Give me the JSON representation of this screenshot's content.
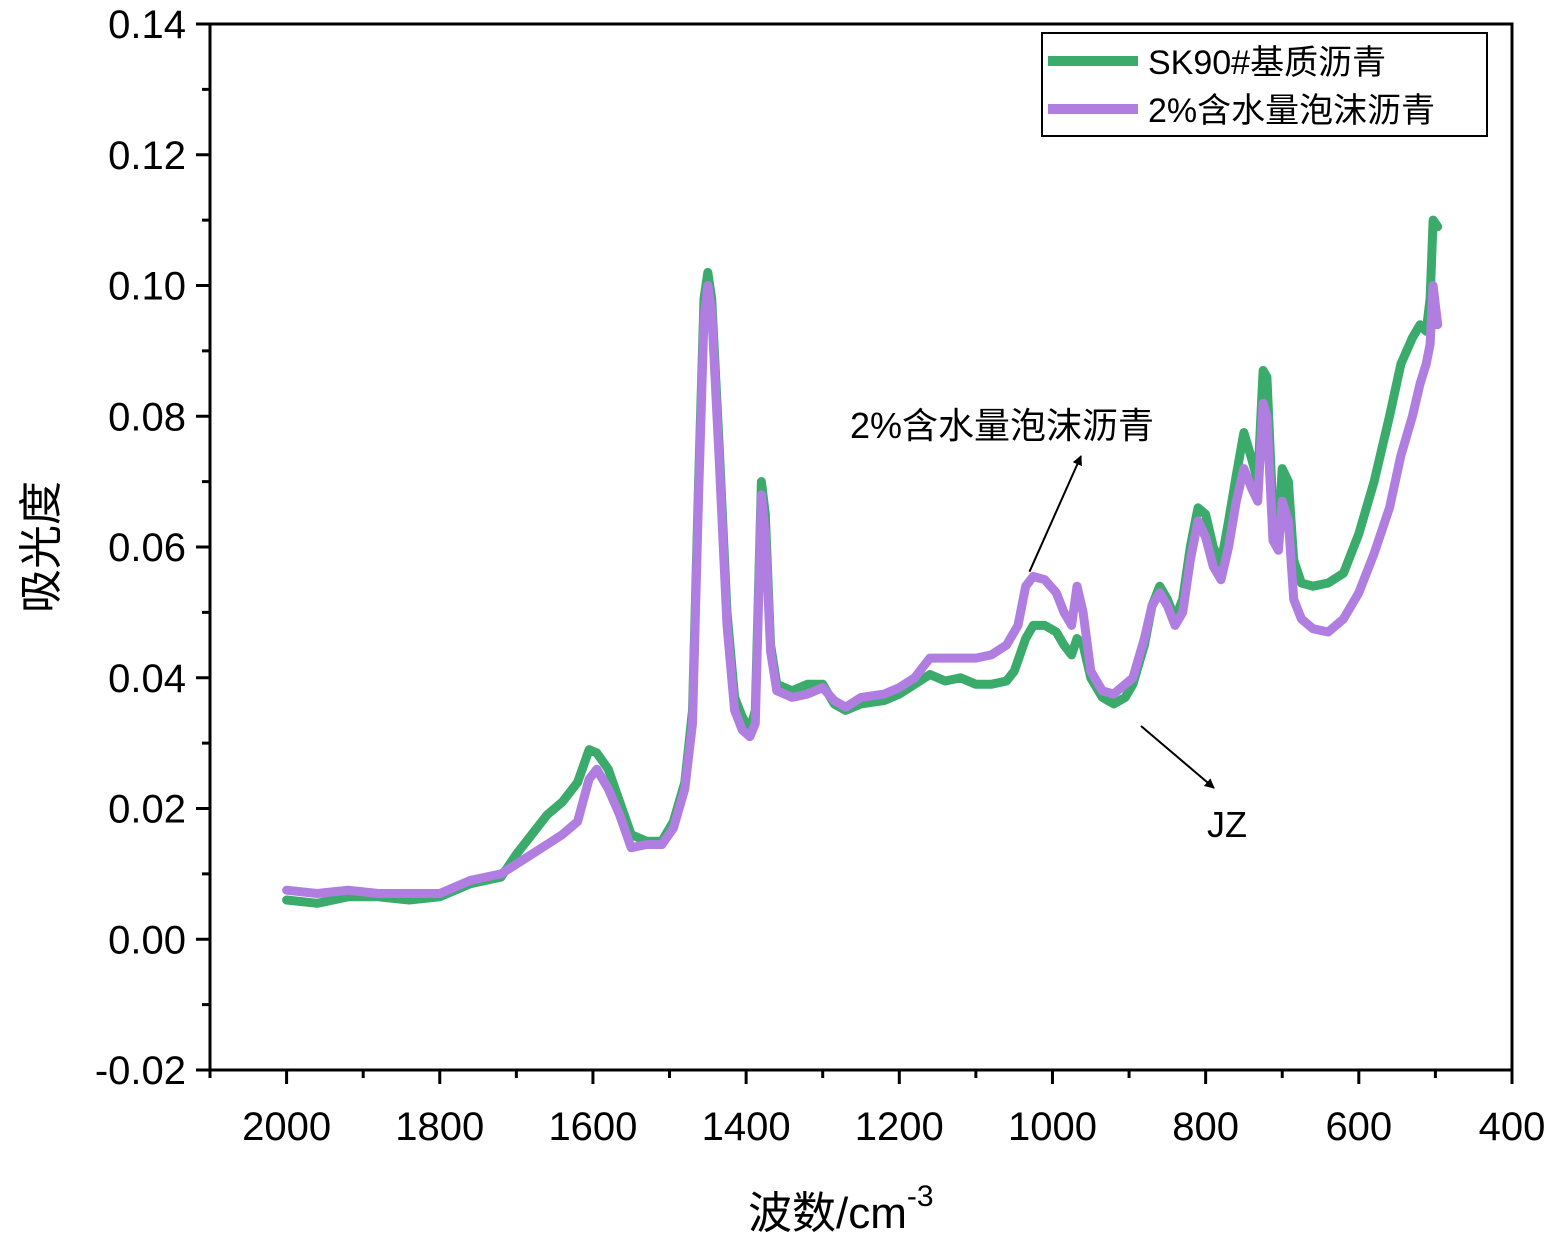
{
  "chart_data": {
    "type": "line",
    "title": "",
    "xlabel": "波数/cm",
    "xlabel_superscript": "-3",
    "ylabel": "吸光度",
    "xlim": [
      2100,
      400
    ],
    "ylim": [
      -0.02,
      0.14
    ],
    "x_ticks": [
      2000,
      1800,
      1600,
      1400,
      1200,
      1000,
      800,
      600,
      400
    ],
    "x_tick_labels": [
      "2000",
      "1800",
      "1600",
      "1400",
      "1200",
      "1000",
      "800",
      "600",
      "400"
    ],
    "y_ticks": [
      -0.02,
      0.0,
      0.02,
      0.04,
      0.06,
      0.08,
      0.1,
      0.12,
      0.14
    ],
    "y_tick_labels": [
      "-0.02",
      "0.00",
      "0.02",
      "0.04",
      "0.06",
      "0.08",
      "0.10",
      "0.12",
      "0.14"
    ],
    "grid": false,
    "legend_position": "top-right",
    "series": [
      {
        "name": "SK90#基质沥青",
        "color": "#3aab6b",
        "points": [
          [
            2000,
            0.006
          ],
          [
            1960,
            0.0055
          ],
          [
            1920,
            0.0065
          ],
          [
            1880,
            0.0065
          ],
          [
            1840,
            0.006
          ],
          [
            1800,
            0.0065
          ],
          [
            1760,
            0.0085
          ],
          [
            1720,
            0.0095
          ],
          [
            1700,
            0.013
          ],
          [
            1680,
            0.016
          ],
          [
            1660,
            0.019
          ],
          [
            1640,
            0.021
          ],
          [
            1620,
            0.024
          ],
          [
            1605,
            0.029
          ],
          [
            1595,
            0.0285
          ],
          [
            1580,
            0.026
          ],
          [
            1565,
            0.021
          ],
          [
            1550,
            0.016
          ],
          [
            1530,
            0.015
          ],
          [
            1510,
            0.015
          ],
          [
            1495,
            0.018
          ],
          [
            1480,
            0.024
          ],
          [
            1470,
            0.035
          ],
          [
            1462,
            0.07
          ],
          [
            1455,
            0.098
          ],
          [
            1450,
            0.102
          ],
          [
            1445,
            0.098
          ],
          [
            1435,
            0.075
          ],
          [
            1425,
            0.05
          ],
          [
            1415,
            0.037
          ],
          [
            1405,
            0.034
          ],
          [
            1395,
            0.032
          ],
          [
            1388,
            0.035
          ],
          [
            1380,
            0.07
          ],
          [
            1375,
            0.065
          ],
          [
            1368,
            0.045
          ],
          [
            1360,
            0.039
          ],
          [
            1340,
            0.038
          ],
          [
            1320,
            0.039
          ],
          [
            1300,
            0.039
          ],
          [
            1285,
            0.036
          ],
          [
            1270,
            0.035
          ],
          [
            1250,
            0.036
          ],
          [
            1220,
            0.0365
          ],
          [
            1200,
            0.0375
          ],
          [
            1180,
            0.039
          ],
          [
            1160,
            0.0405
          ],
          [
            1140,
            0.0395
          ],
          [
            1120,
            0.04
          ],
          [
            1100,
            0.039
          ],
          [
            1080,
            0.039
          ],
          [
            1060,
            0.0395
          ],
          [
            1050,
            0.041
          ],
          [
            1035,
            0.046
          ],
          [
            1025,
            0.048
          ],
          [
            1010,
            0.048
          ],
          [
            995,
            0.047
          ],
          [
            985,
            0.045
          ],
          [
            975,
            0.0435
          ],
          [
            968,
            0.046
          ],
          [
            960,
            0.045
          ],
          [
            950,
            0.04
          ],
          [
            935,
            0.037
          ],
          [
            920,
            0.036
          ],
          [
            905,
            0.037
          ],
          [
            895,
            0.039
          ],
          [
            880,
            0.045
          ],
          [
            870,
            0.051
          ],
          [
            860,
            0.054
          ],
          [
            850,
            0.052
          ],
          [
            840,
            0.049
          ],
          [
            830,
            0.052
          ],
          [
            820,
            0.06
          ],
          [
            810,
            0.066
          ],
          [
            800,
            0.065
          ],
          [
            790,
            0.06
          ],
          [
            780,
            0.0575
          ],
          [
            770,
            0.064
          ],
          [
            760,
            0.071
          ],
          [
            750,
            0.0775
          ],
          [
            740,
            0.0735
          ],
          [
            732,
            0.07
          ],
          [
            725,
            0.087
          ],
          [
            720,
            0.086
          ],
          [
            712,
            0.065
          ],
          [
            705,
            0.062
          ],
          [
            700,
            0.072
          ],
          [
            692,
            0.07
          ],
          [
            685,
            0.058
          ],
          [
            675,
            0.0545
          ],
          [
            660,
            0.054
          ],
          [
            640,
            0.0545
          ],
          [
            620,
            0.056
          ],
          [
            600,
            0.062
          ],
          [
            580,
            0.07
          ],
          [
            560,
            0.08
          ],
          [
            545,
            0.088
          ],
          [
            530,
            0.092
          ],
          [
            520,
            0.094
          ],
          [
            512,
            0.093
          ],
          [
            507,
            0.098
          ],
          [
            503,
            0.11
          ],
          [
            497,
            0.109
          ]
        ]
      },
      {
        "name": "2%含水量泡沫沥青",
        "color": "#b07ee0",
        "points": [
          [
            2000,
            0.0075
          ],
          [
            1960,
            0.007
          ],
          [
            1920,
            0.0075
          ],
          [
            1880,
            0.007
          ],
          [
            1840,
            0.007
          ],
          [
            1800,
            0.007
          ],
          [
            1760,
            0.009
          ],
          [
            1720,
            0.01
          ],
          [
            1700,
            0.0115
          ],
          [
            1680,
            0.013
          ],
          [
            1660,
            0.0145
          ],
          [
            1640,
            0.016
          ],
          [
            1620,
            0.018
          ],
          [
            1605,
            0.0245
          ],
          [
            1595,
            0.026
          ],
          [
            1580,
            0.023
          ],
          [
            1565,
            0.019
          ],
          [
            1550,
            0.014
          ],
          [
            1530,
            0.0145
          ],
          [
            1510,
            0.0145
          ],
          [
            1495,
            0.017
          ],
          [
            1480,
            0.023
          ],
          [
            1470,
            0.033
          ],
          [
            1462,
            0.068
          ],
          [
            1455,
            0.095
          ],
          [
            1450,
            0.1
          ],
          [
            1445,
            0.096
          ],
          [
            1435,
            0.073
          ],
          [
            1425,
            0.048
          ],
          [
            1415,
            0.035
          ],
          [
            1405,
            0.032
          ],
          [
            1395,
            0.031
          ],
          [
            1388,
            0.033
          ],
          [
            1380,
            0.068
          ],
          [
            1375,
            0.062
          ],
          [
            1368,
            0.044
          ],
          [
            1360,
            0.038
          ],
          [
            1340,
            0.037
          ],
          [
            1320,
            0.0375
          ],
          [
            1300,
            0.0385
          ],
          [
            1285,
            0.0365
          ],
          [
            1270,
            0.0355
          ],
          [
            1250,
            0.037
          ],
          [
            1220,
            0.0375
          ],
          [
            1200,
            0.0385
          ],
          [
            1180,
            0.04
          ],
          [
            1160,
            0.043
          ],
          [
            1140,
            0.043
          ],
          [
            1120,
            0.043
          ],
          [
            1100,
            0.043
          ],
          [
            1080,
            0.0435
          ],
          [
            1060,
            0.045
          ],
          [
            1045,
            0.048
          ],
          [
            1035,
            0.054
          ],
          [
            1025,
            0.0555
          ],
          [
            1010,
            0.055
          ],
          [
            995,
            0.053
          ],
          [
            985,
            0.05
          ],
          [
            975,
            0.048
          ],
          [
            968,
            0.054
          ],
          [
            960,
            0.05
          ],
          [
            950,
            0.041
          ],
          [
            935,
            0.038
          ],
          [
            920,
            0.0375
          ],
          [
            905,
            0.039
          ],
          [
            895,
            0.04
          ],
          [
            880,
            0.046
          ],
          [
            870,
            0.051
          ],
          [
            860,
            0.053
          ],
          [
            850,
            0.051
          ],
          [
            840,
            0.048
          ],
          [
            830,
            0.05
          ],
          [
            820,
            0.058
          ],
          [
            810,
            0.064
          ],
          [
            800,
            0.0615
          ],
          [
            790,
            0.057
          ],
          [
            780,
            0.055
          ],
          [
            770,
            0.06
          ],
          [
            760,
            0.067
          ],
          [
            750,
            0.072
          ],
          [
            740,
            0.069
          ],
          [
            732,
            0.067
          ],
          [
            725,
            0.082
          ],
          [
            720,
            0.08
          ],
          [
            712,
            0.061
          ],
          [
            705,
            0.0595
          ],
          [
            700,
            0.067
          ],
          [
            692,
            0.064
          ],
          [
            685,
            0.052
          ],
          [
            675,
            0.049
          ],
          [
            660,
            0.0475
          ],
          [
            640,
            0.047
          ],
          [
            620,
            0.049
          ],
          [
            600,
            0.053
          ],
          [
            580,
            0.059
          ],
          [
            560,
            0.066
          ],
          [
            545,
            0.074
          ],
          [
            530,
            0.08
          ],
          [
            520,
            0.085
          ],
          [
            512,
            0.088
          ],
          [
            507,
            0.091
          ],
          [
            503,
            0.1
          ],
          [
            497,
            0.094
          ]
        ]
      }
    ],
    "annotations": [
      {
        "text": "2%含水量泡沫沥青",
        "target": [
          1030,
          0.055
        ]
      },
      {
        "text": "JZ",
        "target": [
          930,
          0.037
        ]
      }
    ]
  }
}
